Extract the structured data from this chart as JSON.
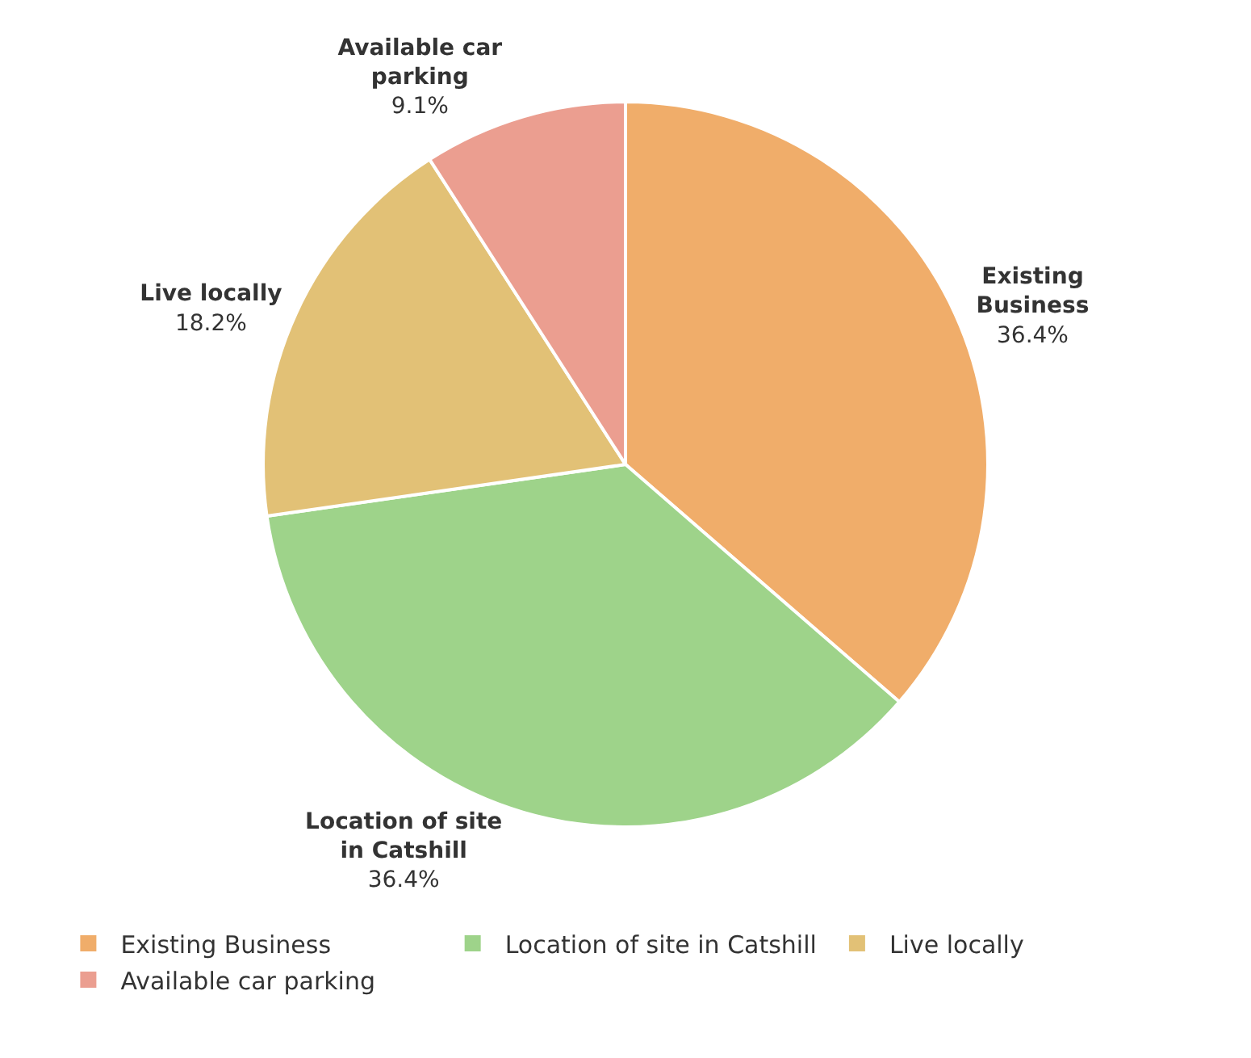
{
  "chart_data": {
    "type": "pie",
    "categories": [
      "Existing Business",
      "Location of site in Catshill",
      "Live locally",
      "Available car parking"
    ],
    "values": [
      36.4,
      36.4,
      18.2,
      9.1
    ],
    "colors": [
      "#f0ad6a",
      "#9ed38a",
      "#e2c176",
      "#eb9e90"
    ],
    "value_labels": [
      "36.4%",
      "36.4%",
      "18.2%",
      "9.1%"
    ],
    "legend": "bottom left"
  }
}
